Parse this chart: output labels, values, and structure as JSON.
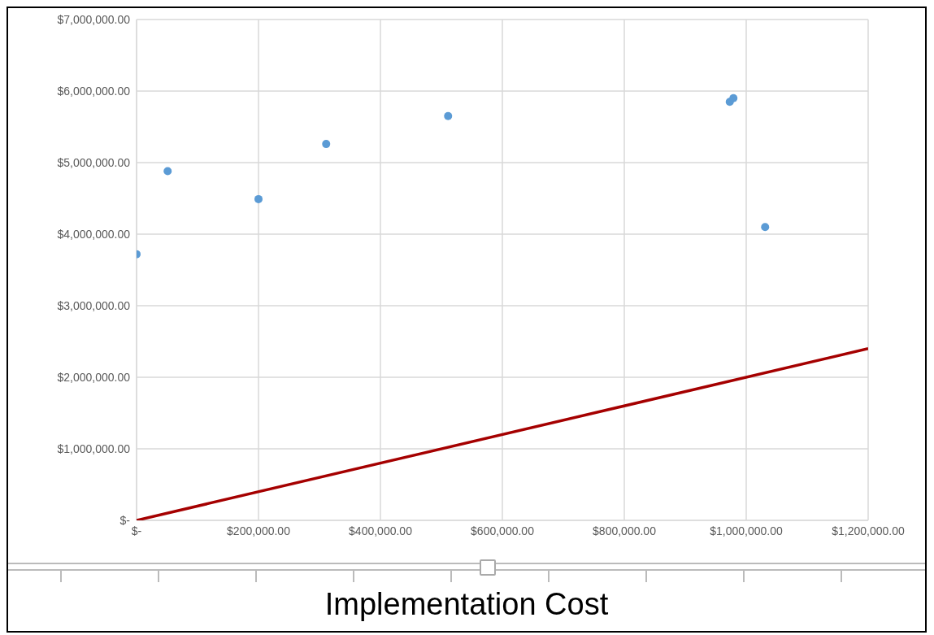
{
  "chart_data": {
    "type": "scatter",
    "xlabel": "Implementation Cost",
    "xlim": [
      0,
      1200000
    ],
    "xticks": [
      {
        "value": 0,
        "label": "$-"
      },
      {
        "value": 200000,
        "label": "$200,000.00"
      },
      {
        "value": 400000,
        "label": "$400,000.00"
      },
      {
        "value": 600000,
        "label": "$600,000.00"
      },
      {
        "value": 800000,
        "label": "$800,000.00"
      },
      {
        "value": 1000000,
        "label": "$1,000,000.00"
      },
      {
        "value": 1200000,
        "label": "$1,200,000.00"
      }
    ],
    "ylim": [
      0,
      7000000
    ],
    "yticks": [
      {
        "value": 0,
        "label": "$-"
      },
      {
        "value": 1000000,
        "label": "$1,000,000.00"
      },
      {
        "value": 2000000,
        "label": "$2,000,000.00"
      },
      {
        "value": 3000000,
        "label": "$3,000,000.00"
      },
      {
        "value": 4000000,
        "label": "$4,000,000.00"
      },
      {
        "value": 5000000,
        "label": "$5,000,000.00"
      },
      {
        "value": 6000000,
        "label": "$6,000,000.00"
      },
      {
        "value": 7000000,
        "label": "$7,000,000.00"
      }
    ],
    "grid": true,
    "marker": "circle",
    "series": [
      {
        "color": "#5b9bd5",
        "x": [
          0,
          51000,
          200000,
          311000,
          511000,
          973000,
          979000,
          1031000
        ],
        "values": [
          3720000,
          4880000,
          4490000,
          5260000,
          5650000,
          5850000,
          5900000,
          4100000
        ]
      },
      {
        "type": "line",
        "color": "#a50000",
        "marker": "none",
        "x": [
          0,
          1200000
        ],
        "values": [
          0,
          2400000
        ]
      }
    ]
  }
}
